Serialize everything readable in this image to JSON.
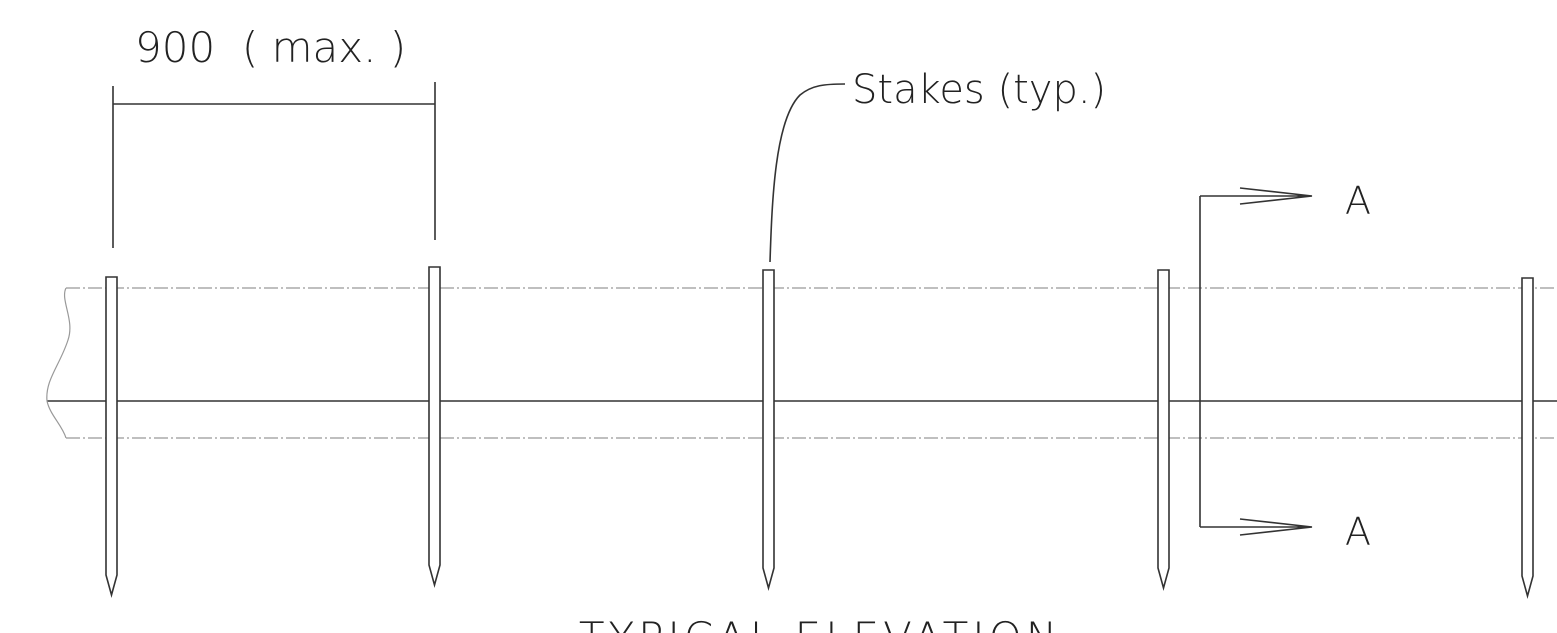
{
  "dimension": {
    "label": "900  ( max. )"
  },
  "callout": {
    "label": "Stakes (typ.)"
  },
  "section_marks": [
    "A",
    "A"
  ],
  "title": "TYPICAL ELEVATION"
}
